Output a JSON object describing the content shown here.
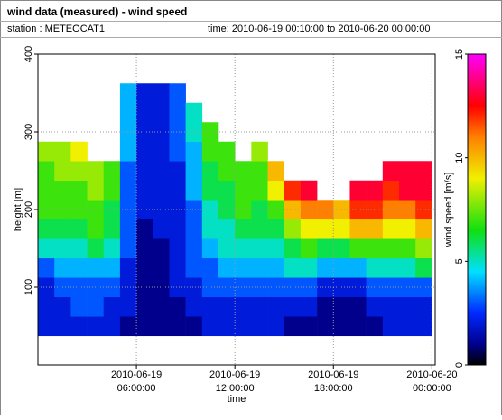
{
  "chart_data": {
    "type": "heatmap",
    "title": "wind data (measured) - wind speed",
    "station": "station : METEOCAT1",
    "time_range": "time: 2010-06-19 00:10:00 to 2010-06-20 00:00:00",
    "x_label": "time",
    "y_label": "height [m]",
    "colorbar_label": "wind speed [m/s]",
    "x": [
      0.5,
      1.5,
      2.5,
      3.5,
      4.5,
      5.5,
      6.5,
      7.5,
      8.5,
      9.5,
      10.5,
      11.5,
      12.5,
      13.5,
      14.5,
      15.5,
      16.5,
      17.5,
      18.5,
      19.5,
      20.5,
      21.5,
      22.5,
      23.5
    ],
    "y": [
      50,
      75,
      100,
      125,
      150,
      175,
      200,
      225,
      250,
      275,
      300,
      325,
      350
    ],
    "values": [
      [
        2,
        2,
        2,
        3,
        5,
        6,
        7,
        7,
        7,
        8,
        null,
        null,
        null
      ],
      [
        2,
        2,
        3,
        4,
        5,
        6,
        7,
        7,
        8,
        8,
        null,
        null,
        null
      ],
      [
        2,
        3,
        3,
        4,
        5,
        6,
        7,
        7,
        8,
        9,
        null,
        null,
        null
      ],
      [
        2,
        3,
        3,
        4,
        6,
        7,
        7,
        8,
        8,
        null,
        null,
        null,
        null
      ],
      [
        2,
        2,
        3,
        4,
        5,
        6,
        6,
        7,
        7,
        null,
        null,
        null,
        null
      ],
      [
        1,
        2,
        2,
        2,
        3,
        3,
        3,
        3,
        3,
        4,
        4,
        4,
        4
      ],
      [
        1,
        1,
        1,
        1,
        1,
        1,
        2,
        2,
        2,
        2,
        2,
        2,
        2
      ],
      [
        1,
        1,
        1,
        1,
        1,
        2,
        2,
        2,
        2,
        2,
        2,
        2,
        2
      ],
      [
        1,
        1,
        2,
        2,
        2,
        2,
        2,
        2,
        2,
        3,
        3,
        3,
        3
      ],
      [
        1,
        2,
        2,
        3,
        3,
        3,
        3,
        4,
        4,
        4,
        5,
        5,
        null
      ],
      [
        2,
        2,
        3,
        3,
        4,
        5,
        5,
        6,
        6,
        7,
        7,
        null,
        null
      ],
      [
        2,
        2,
        3,
        4,
        5,
        5,
        6,
        6,
        7,
        7,
        null,
        null,
        null
      ],
      [
        2,
        2,
        3,
        4,
        5,
        6,
        7,
        7,
        7,
        null,
        null,
        null,
        null
      ],
      [
        2,
        2,
        3,
        4,
        5,
        6,
        6,
        7,
        7,
        8,
        null,
        null,
        null
      ],
      [
        2,
        2,
        3,
        4,
        5,
        6,
        7,
        9,
        10,
        null,
        null,
        null,
        null
      ],
      [
        1,
        2,
        3,
        5,
        6,
        8,
        10,
        12,
        null,
        null,
        null,
        null,
        null
      ],
      [
        1,
        2,
        3,
        5,
        7,
        9,
        11,
        13,
        null,
        null,
        null,
        null,
        null
      ],
      [
        1,
        1,
        2,
        4,
        6,
        9,
        11,
        null,
        null,
        null,
        null,
        null,
        null
      ],
      [
        1,
        1,
        2,
        4,
        6,
        9,
        10,
        null,
        null,
        null,
        null,
        null,
        null
      ],
      [
        1,
        1,
        2,
        4,
        7,
        10,
        12,
        13,
        null,
        null,
        null,
        null,
        null
      ],
      [
        1,
        2,
        3,
        5,
        7,
        10,
        12,
        13,
        null,
        null,
        null,
        null,
        null
      ],
      [
        2,
        2,
        3,
        5,
        7,
        9,
        11,
        12,
        13,
        null,
        null,
        null,
        null
      ],
      [
        2,
        2,
        3,
        5,
        7,
        9,
        11,
        13,
        13,
        null,
        null,
        null,
        null
      ],
      [
        2,
        2,
        3,
        6,
        8,
        10,
        12,
        13,
        13,
        null,
        null,
        null,
        null
      ]
    ],
    "xlim": [
      0,
      24.2
    ],
    "xticks": [
      {
        "value": 6,
        "label": [
          "2010-06-19",
          "06:00:00"
        ]
      },
      {
        "value": 12,
        "label": [
          "2010-06-19",
          "12:00:00"
        ]
      },
      {
        "value": 18,
        "label": [
          "2010-06-19",
          "18:00:00"
        ]
      },
      {
        "value": 24,
        "label": [
          "2010-06-20",
          "00:00:00"
        ]
      }
    ],
    "ylim": [
      0,
      400
    ],
    "yticks": [
      100,
      200,
      300,
      400
    ],
    "clim": [
      0,
      15
    ],
    "cticks": [
      0,
      5,
      10,
      15
    ],
    "colormap": [
      [
        0,
        "#000000"
      ],
      [
        1,
        "#00008c"
      ],
      [
        2.5,
        "#0028ff"
      ],
      [
        4.5,
        "#00e0ff"
      ],
      [
        6.5,
        "#10e010"
      ],
      [
        9,
        "#f0f000"
      ],
      [
        11,
        "#ff8000"
      ],
      [
        12.5,
        "#ff0000"
      ],
      [
        15,
        "#ff00ff"
      ]
    ],
    "grid": true
  }
}
